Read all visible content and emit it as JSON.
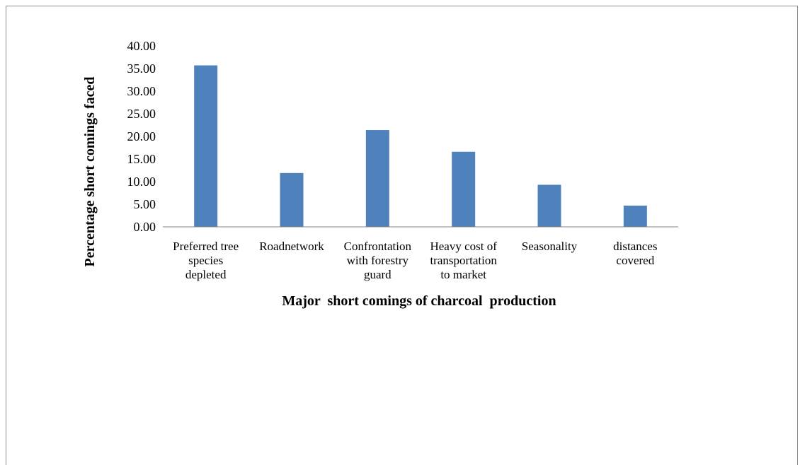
{
  "chart_data": {
    "type": "bar",
    "title": "",
    "xlabel": "Major  short comings of charcoal  production",
    "ylabel": "Percentage short comings faced",
    "categories": [
      [
        "Preferred tree",
        "species",
        "depleted"
      ],
      [
        "Roadnetwork"
      ],
      [
        "Confrontation",
        "with forestry",
        "guard"
      ],
      [
        "Heavy cost of",
        "transportation",
        "to market"
      ],
      [
        "Seasonality"
      ],
      [
        "distances",
        "covered"
      ]
    ],
    "values": [
      35.7,
      11.9,
      21.4,
      16.6,
      9.3,
      4.7
    ],
    "ylim": [
      0,
      40
    ],
    "yticks": [
      "0.00",
      "5.00",
      "10.00",
      "15.00",
      "20.00",
      "25.00",
      "30.00",
      "35.00",
      "40.00"
    ],
    "grid": false,
    "legend": "none",
    "bar_color": "#4f81bd"
  }
}
